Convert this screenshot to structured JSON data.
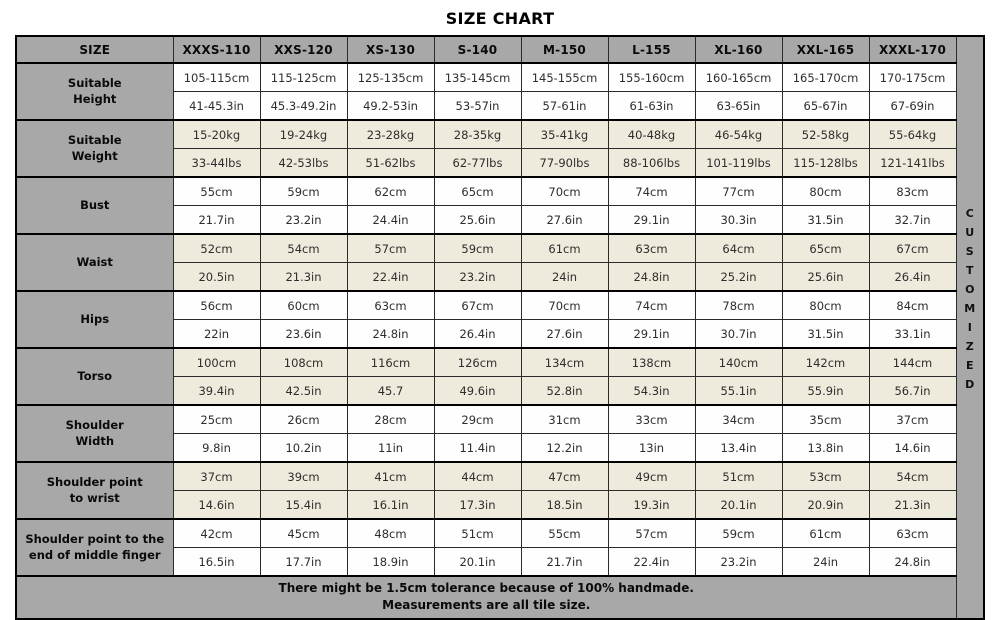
{
  "title": "SIZE CHART",
  "colors": {
    "header_gray": "#a8a8a8",
    "band_beige": "#efebdc",
    "band_white": "#fefefe",
    "border_dark": "#000000",
    "text_dark": "#2d2d2d"
  },
  "table": {
    "corner_label": "SIZE",
    "size_headers": [
      "XXXS-110",
      "XXS-120",
      "XS-130",
      "S-140",
      "M-150",
      "L-155",
      "XL-160",
      "XXL-165",
      "XXXL-170"
    ],
    "customized_label": "CUSTOMIZED",
    "groups": [
      {
        "label": "Suitable\nHeight",
        "row1": [
          "105-115cm",
          "115-125cm",
          "125-135cm",
          "135-145cm",
          "145-155cm",
          "155-160cm",
          "160-165cm",
          "165-170cm",
          "170-175cm"
        ],
        "row2": [
          "41-45.3in",
          "45.3-49.2in",
          "49.2-53in",
          "53-57in",
          "57-61in",
          "61-63in",
          "63-65in",
          "65-67in",
          "67-69in"
        ]
      },
      {
        "label": "Suitable\nWeight",
        "row1": [
          "15-20kg",
          "19-24kg",
          "23-28kg",
          "28-35kg",
          "35-41kg",
          "40-48kg",
          "46-54kg",
          "52-58kg",
          "55-64kg"
        ],
        "row2": [
          "33-44lbs",
          "42-53lbs",
          "51-62lbs",
          "62-77lbs",
          "77-90lbs",
          "88-106lbs",
          "101-119lbs",
          "115-128lbs",
          "121-141lbs"
        ]
      },
      {
        "label": "Bust",
        "row1": [
          "55cm",
          "59cm",
          "62cm",
          "65cm",
          "70cm",
          "74cm",
          "77cm",
          "80cm",
          "83cm"
        ],
        "row2": [
          "21.7in",
          "23.2in",
          "24.4in",
          "25.6in",
          "27.6in",
          "29.1in",
          "30.3in",
          "31.5in",
          "32.7in"
        ]
      },
      {
        "label": "Waist",
        "row1": [
          "52cm",
          "54cm",
          "57cm",
          "59cm",
          "61cm",
          "63cm",
          "64cm",
          "65cm",
          "67cm"
        ],
        "row2": [
          "20.5in",
          "21.3in",
          "22.4in",
          "23.2in",
          "24in",
          "24.8in",
          "25.2in",
          "25.6in",
          "26.4in"
        ]
      },
      {
        "label": "Hips",
        "row1": [
          "56cm",
          "60cm",
          "63cm",
          "67cm",
          "70cm",
          "74cm",
          "78cm",
          "80cm",
          "84cm"
        ],
        "row2": [
          "22in",
          "23.6in",
          "24.8in",
          "26.4in",
          "27.6in",
          "29.1in",
          "30.7in",
          "31.5in",
          "33.1in"
        ]
      },
      {
        "label": "Torso",
        "row1": [
          "100cm",
          "108cm",
          "116cm",
          "126cm",
          "134cm",
          "138cm",
          "140cm",
          "142cm",
          "144cm"
        ],
        "row2": [
          "39.4in",
          "42.5in",
          "45.7",
          "49.6in",
          "52.8in",
          "54.3in",
          "55.1in",
          "55.9in",
          "56.7in"
        ]
      },
      {
        "label": "Shoulder\nWidth",
        "row1": [
          "25cm",
          "26cm",
          "28cm",
          "29cm",
          "31cm",
          "33cm",
          "34cm",
          "35cm",
          "37cm"
        ],
        "row2": [
          "9.8in",
          "10.2in",
          "11in",
          "11.4in",
          "12.2in",
          "13in",
          "13.4in",
          "13.8in",
          "14.6in"
        ]
      },
      {
        "label": "Shoulder point\nto wrist",
        "row1": [
          "37cm",
          "39cm",
          "41cm",
          "44cm",
          "47cm",
          "49cm",
          "51cm",
          "53cm",
          "54cm"
        ],
        "row2": [
          "14.6in",
          "15.4in",
          "16.1in",
          "17.3in",
          "18.5in",
          "19.3in",
          "20.1in",
          "20.9in",
          "21.3in"
        ]
      },
      {
        "label": "Shoulder point to the\nend of middle finger",
        "row1": [
          "42cm",
          "45cm",
          "48cm",
          "51cm",
          "55cm",
          "57cm",
          "59cm",
          "61cm",
          "63cm"
        ],
        "row2": [
          "16.5in",
          "17.7in",
          "18.9in",
          "20.1in",
          "21.7in",
          "22.4in",
          "23.2in",
          "24in",
          "24.8in"
        ]
      }
    ]
  },
  "footer": {
    "line1": "There might be 1.5cm tolerance because of 100% handmade.",
    "line2": "Measurements are all tile size."
  },
  "chart_data": {
    "type": "table",
    "title": "SIZE CHART",
    "columns": [
      "SIZE",
      "XXXS-110",
      "XXS-120",
      "XS-130",
      "S-140",
      "M-150",
      "L-155",
      "XL-160",
      "XXL-165",
      "XXXL-170"
    ],
    "rows": [
      [
        "Suitable Height (cm)",
        "105-115cm",
        "115-125cm",
        "125-135cm",
        "135-145cm",
        "145-155cm",
        "155-160cm",
        "160-165cm",
        "165-170cm",
        "170-175cm"
      ],
      [
        "Suitable Height (in)",
        "41-45.3in",
        "45.3-49.2in",
        "49.2-53in",
        "53-57in",
        "57-61in",
        "61-63in",
        "63-65in",
        "65-67in",
        "67-69in"
      ],
      [
        "Suitable Weight (kg)",
        "15-20kg",
        "19-24kg",
        "23-28kg",
        "28-35kg",
        "35-41kg",
        "40-48kg",
        "46-54kg",
        "52-58kg",
        "55-64kg"
      ],
      [
        "Suitable Weight (lbs)",
        "33-44lbs",
        "42-53lbs",
        "51-62lbs",
        "62-77lbs",
        "77-90lbs",
        "88-106lbs",
        "101-119lbs",
        "115-128lbs",
        "121-141lbs"
      ],
      [
        "Bust (cm)",
        "55cm",
        "59cm",
        "62cm",
        "65cm",
        "70cm",
        "74cm",
        "77cm",
        "80cm",
        "83cm"
      ],
      [
        "Bust (in)",
        "21.7in",
        "23.2in",
        "24.4in",
        "25.6in",
        "27.6in",
        "29.1in",
        "30.3in",
        "31.5in",
        "32.7in"
      ],
      [
        "Waist (cm)",
        "52cm",
        "54cm",
        "57cm",
        "59cm",
        "61cm",
        "63cm",
        "64cm",
        "65cm",
        "67cm"
      ],
      [
        "Waist (in)",
        "20.5in",
        "21.3in",
        "22.4in",
        "23.2in",
        "24in",
        "24.8in",
        "25.2in",
        "25.6in",
        "26.4in"
      ],
      [
        "Hips (cm)",
        "56cm",
        "60cm",
        "63cm",
        "67cm",
        "70cm",
        "74cm",
        "78cm",
        "80cm",
        "84cm"
      ],
      [
        "Hips (in)",
        "22in",
        "23.6in",
        "24.8in",
        "26.4in",
        "27.6in",
        "29.1in",
        "30.7in",
        "31.5in",
        "33.1in"
      ],
      [
        "Torso (cm)",
        "100cm",
        "108cm",
        "116cm",
        "126cm",
        "134cm",
        "138cm",
        "140cm",
        "142cm",
        "144cm"
      ],
      [
        "Torso (in)",
        "39.4in",
        "42.5in",
        "45.7",
        "49.6in",
        "52.8in",
        "54.3in",
        "55.1in",
        "55.9in",
        "56.7in"
      ],
      [
        "Shoulder Width (cm)",
        "25cm",
        "26cm",
        "28cm",
        "29cm",
        "31cm",
        "33cm",
        "34cm",
        "35cm",
        "37cm"
      ],
      [
        "Shoulder Width (in)",
        "9.8in",
        "10.2in",
        "11in",
        "11.4in",
        "12.2in",
        "13in",
        "13.4in",
        "13.8in",
        "14.6in"
      ],
      [
        "Shoulder point to wrist (cm)",
        "37cm",
        "39cm",
        "41cm",
        "44cm",
        "47cm",
        "49cm",
        "51cm",
        "53cm",
        "54cm"
      ],
      [
        "Shoulder point to wrist (in)",
        "14.6in",
        "15.4in",
        "16.1in",
        "17.3in",
        "18.5in",
        "19.3in",
        "20.1in",
        "20.9in",
        "21.3in"
      ],
      [
        "Shoulder point to the end of middle finger (cm)",
        "42cm",
        "45cm",
        "48cm",
        "51cm",
        "55cm",
        "57cm",
        "59cm",
        "61cm",
        "63cm"
      ],
      [
        "Shoulder point to the end of middle finger (in)",
        "16.5in",
        "17.7in",
        "18.9in",
        "20.1in",
        "21.7in",
        "22.4in",
        "23.2in",
        "24in",
        "24.8in"
      ]
    ],
    "annotations": [
      "CUSTOMIZED",
      "There might be 1.5cm tolerance because of 100% handmade.",
      "Measurements are all tile size."
    ]
  }
}
